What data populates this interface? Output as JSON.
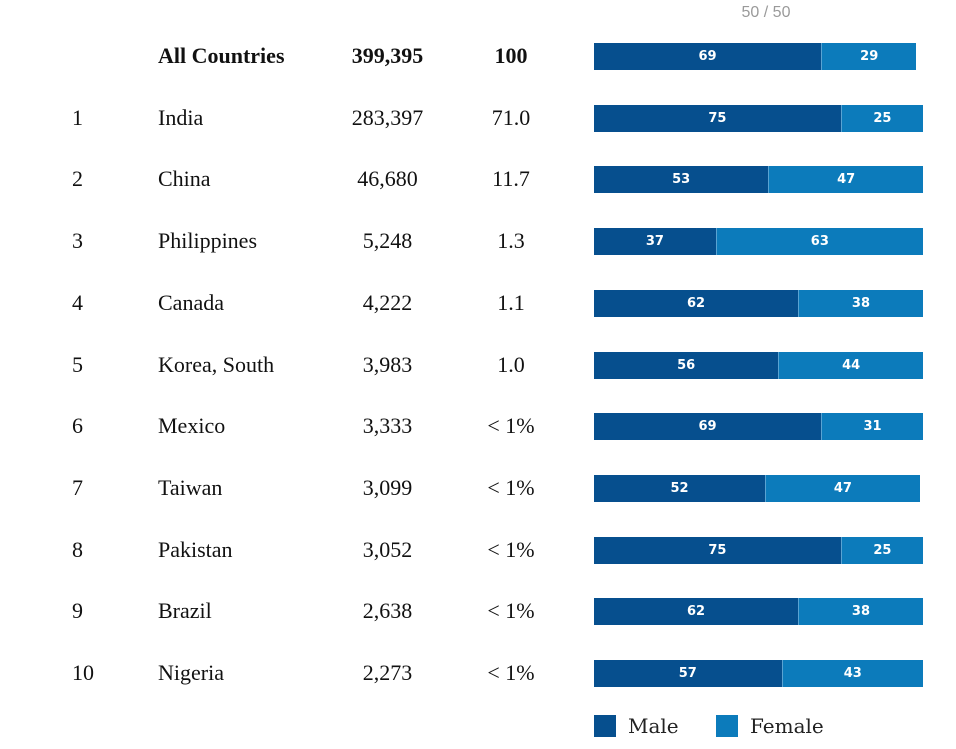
{
  "page_counter": "50 / 50",
  "colors": {
    "male": "#064f8e",
    "female": "#0c7bbb"
  },
  "legend": [
    {
      "label": "Male",
      "color": "#064f8e"
    },
    {
      "label": "Female",
      "color": "#0c7bbb"
    }
  ],
  "total": {
    "label": "All Countries",
    "count": "399,395",
    "percent": "100",
    "male": 69,
    "female": 29
  },
  "rows": [
    {
      "rank": "1",
      "country": "India",
      "count": "283,397",
      "percent": "71.0",
      "male": 75,
      "female": 25
    },
    {
      "rank": "2",
      "country": "China",
      "count": "46,680",
      "percent": "11.7",
      "male": 53,
      "female": 47
    },
    {
      "rank": "3",
      "country": "Philippines",
      "count": "5,248",
      "percent": "1.3",
      "male": 37,
      "female": 63
    },
    {
      "rank": "4",
      "country": "Canada",
      "count": "4,222",
      "percent": "1.1",
      "male": 62,
      "female": 38
    },
    {
      "rank": "5",
      "country": "Korea, South",
      "count": "3,983",
      "percent": "1.0",
      "male": 56,
      "female": 44
    },
    {
      "rank": "6",
      "country": "Mexico",
      "count": "3,333",
      "percent": "< 1%",
      "male": 69,
      "female": 31
    },
    {
      "rank": "7",
      "country": "Taiwan",
      "count": "3,099",
      "percent": "< 1%",
      "male": 52,
      "female": 47
    },
    {
      "rank": "8",
      "country": "Pakistan",
      "count": "3,052",
      "percent": "< 1%",
      "male": 75,
      "female": 25
    },
    {
      "rank": "9",
      "country": "Brazil",
      "count": "2,638",
      "percent": "< 1%",
      "male": 62,
      "female": 38
    },
    {
      "rank": "10",
      "country": "Nigeria",
      "count": "2,273",
      "percent": "< 1%",
      "male": 57,
      "female": 43
    }
  ],
  "chart_data": {
    "type": "bar",
    "orientation": "horizontal",
    "stacked": true,
    "categories": [
      "All Countries",
      "India",
      "China",
      "Philippines",
      "Canada",
      "Korea, South",
      "Mexico",
      "Taiwan",
      "Pakistan",
      "Brazil",
      "Nigeria"
    ],
    "series": [
      {
        "name": "Male",
        "values": [
          69,
          75,
          53,
          37,
          62,
          56,
          69,
          52,
          75,
          62,
          57
        ]
      },
      {
        "name": "Female",
        "values": [
          29,
          25,
          47,
          63,
          38,
          44,
          31,
          47,
          25,
          38,
          43
        ]
      }
    ],
    "legend_position": "bottom",
    "grid": false
  }
}
